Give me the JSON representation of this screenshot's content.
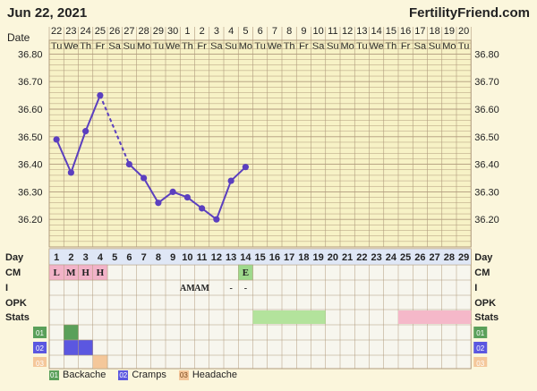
{
  "header": {
    "date": "Jun 22, 2021",
    "site": "FertilityFriend.com"
  },
  "chart_data": {
    "type": "line",
    "title": "",
    "y_axis_label": "",
    "date_row_label": "Date",
    "dates": [
      "22",
      "23",
      "24",
      "25",
      "26",
      "27",
      "28",
      "29",
      "30",
      "1",
      "2",
      "3",
      "4",
      "5",
      "6",
      "7",
      "8",
      "9",
      "10",
      "11",
      "12",
      "13",
      "14",
      "15",
      "16",
      "17",
      "18",
      "19",
      "20"
    ],
    "weekdays": [
      "Tu",
      "We",
      "Th",
      "Fr",
      "Sa",
      "Su",
      "Mo",
      "Tu",
      "We",
      "Th",
      "Fr",
      "Sa",
      "Su",
      "Mo",
      "Tu",
      "We",
      "Th",
      "Fr",
      "Sa",
      "Su",
      "Mo",
      "Tu",
      "We",
      "Th",
      "Fr",
      "Sa",
      "Su",
      "Mo",
      "Tu"
    ],
    "ylim": [
      36.1,
      36.85
    ],
    "y_ticks": [
      "36.80",
      "36.70",
      "36.60",
      "36.50",
      "36.40",
      "36.30",
      "36.20"
    ],
    "temps": [
      36.49,
      36.37,
      36.52,
      36.65,
      36.4,
      36.35,
      36.26,
      36.3,
      36.28,
      36.24,
      36.2,
      36.34,
      36.39
    ],
    "temp_days": [
      1,
      2,
      3,
      4,
      6,
      7,
      8,
      9,
      10,
      11,
      12,
      13,
      14
    ],
    "dashed_segment": [
      4,
      6
    ],
    "cycle_days": [
      "1",
      "2",
      "3",
      "4",
      "5",
      "6",
      "7",
      "8",
      "9",
      "10",
      "11",
      "12",
      "13",
      "14",
      "15",
      "16",
      "17",
      "18",
      "19",
      "20",
      "21",
      "22",
      "23",
      "24",
      "25",
      "26",
      "27",
      "28",
      "29"
    ],
    "row_labels": [
      "Day",
      "CM",
      "I",
      "OPK",
      "Stats"
    ],
    "cm": [
      {
        "day": 1,
        "label": "L"
      },
      {
        "day": 2,
        "label": "M"
      },
      {
        "day": 3,
        "label": "H"
      },
      {
        "day": 4,
        "label": "H"
      },
      {
        "day": 14,
        "label": "E"
      }
    ],
    "intercourse": [
      {
        "day": 10,
        "label": "AM"
      },
      {
        "day": 11,
        "label": "AM"
      },
      {
        "day": 13,
        "label": "-"
      },
      {
        "day": 14,
        "label": "-"
      }
    ],
    "stats": [
      {
        "from": 15,
        "to": 19,
        "color": "#b3e39c"
      },
      {
        "from": 25,
        "to": 29,
        "color": "#f5b8c9"
      }
    ],
    "symptom_rows": [
      {
        "code": "01",
        "color": "#5aa05a",
        "days": [
          2
        ]
      },
      {
        "code": "02",
        "color": "#5b57e0",
        "days": [
          2,
          3
        ]
      },
      {
        "code": "03",
        "color": "#f4c79a",
        "days": [
          4
        ]
      }
    ]
  },
  "legend": [
    {
      "code": "01",
      "name": "Backache",
      "color": "#5aa05a"
    },
    {
      "code": "02",
      "name": "Cramps",
      "color": "#5b57e0"
    },
    {
      "code": "03",
      "name": "Headache",
      "color": "#f4c79a"
    }
  ],
  "colors": {
    "grid": "#b09a7c",
    "line": "#5b3fbf",
    "plot_bg": "#f7f2c6",
    "cm_low": "#f2b3c8",
    "cm_e": "#9ed98c"
  }
}
